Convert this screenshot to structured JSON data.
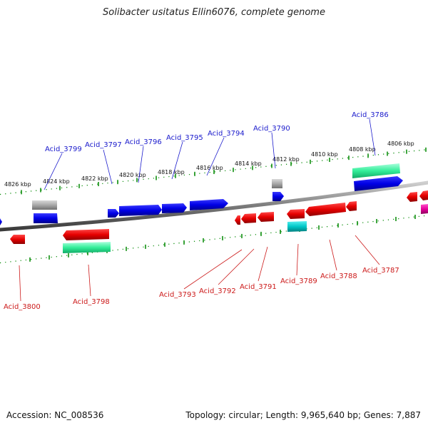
{
  "title": "Solibacter usitatus Ellin6076, complete genome",
  "footer": {
    "accession": "Accession: NC_008536",
    "stats": "Topology: circular; Length: 9,965,640 bp; Genes: 7,887"
  },
  "colors": {
    "forward": "#0000e6",
    "reverse": "#e60000",
    "rna": "#9e9e9e",
    "teal": "#00c8c8",
    "pseudo": "#33ee99",
    "pink": "#e6009a",
    "ticks_outer": "#008800",
    "backbone": "#777777",
    "forward_label": "#1a1acc",
    "reverse_label": "#cc1a1a"
  },
  "axis_labels": [
    "4826 kbp",
    "4824 kbp",
    "4822 kbp",
    "4820 kbp",
    "4818 kbp",
    "4816 kbp",
    "4814 kbp",
    "4812 kbp",
    "4810 kbp",
    "4808 kbp",
    "4806 kbp"
  ],
  "forward_labels": [
    "Acid_3799",
    "Acid_3797",
    "Acid_3796",
    "Acid_3795",
    "Acid_3794",
    "Acid_3790",
    "Acid_3786"
  ],
  "reverse_labels": [
    "Acid_3800",
    "Acid_3798",
    "Acid_3793",
    "Acid_3792",
    "Acid_3791",
    "Acid_3789",
    "Acid_3788",
    "Acid_3787"
  ]
}
